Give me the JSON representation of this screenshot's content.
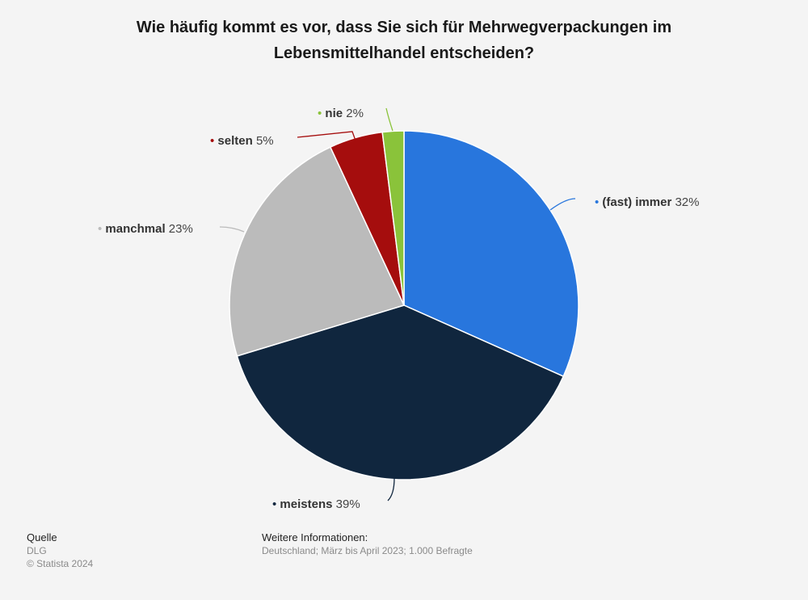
{
  "chart_data": {
    "type": "pie",
    "title": "Wie häufig kommt es vor, dass Sie sich für Mehrwegverpackungen im Lebensmittelhandel entscheiden?",
    "slices": [
      {
        "label": "(fast) immer",
        "value": 32,
        "display": "32%",
        "color": "#2876dd"
      },
      {
        "label": "meistens",
        "value": 39,
        "display": "39%",
        "color": "#10263e"
      },
      {
        "label": "manchmal",
        "value": 23,
        "display": "23%",
        "color": "#bbbbbb"
      },
      {
        "label": "selten",
        "value": 5,
        "display": "5%",
        "color": "#a50d0d"
      },
      {
        "label": "nie",
        "value": 2,
        "display": "2%",
        "color": "#8ac33a"
      }
    ],
    "start_angle": "12 o'clock",
    "direction": "clockwise"
  },
  "footer": {
    "source_heading": "Quelle",
    "source": "DLG",
    "copyright": "© Statista 2024",
    "info_heading": "Weitere Informationen:",
    "info": "Deutschland; März bis April 2023; 1.000 Befragte"
  }
}
